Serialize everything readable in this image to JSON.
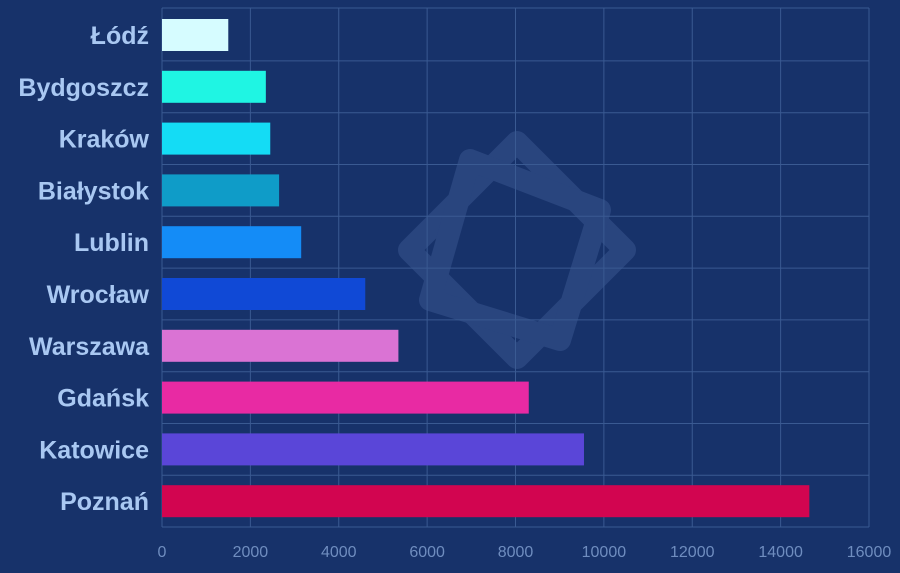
{
  "chart_data": {
    "type": "bar",
    "orientation": "horizontal",
    "categories": [
      "Łódź",
      "Bydgoszcz",
      "Kraków",
      "Białystok",
      "Lublin",
      "Wrocław",
      "Warszawa",
      "Gdańsk",
      "Katowice",
      "Poznań"
    ],
    "values": [
      1500,
      2350,
      2450,
      2650,
      3150,
      4600,
      5350,
      8300,
      9550,
      14650
    ],
    "colors": [
      "#d6fcff",
      "#1ff5e3",
      "#14dcf5",
      "#0f9cc8",
      "#148cf7",
      "#1049d6",
      "#da73d4",
      "#e82aa3",
      "#5a46d8",
      "#d20550"
    ],
    "xlim": [
      0,
      16000
    ],
    "xticks": [
      "0",
      "2000",
      "4000",
      "6000",
      "8000",
      "10000",
      "12000",
      "14000",
      "16000"
    ],
    "grid": true,
    "title": "",
    "xlabel": "",
    "ylabel": ""
  }
}
